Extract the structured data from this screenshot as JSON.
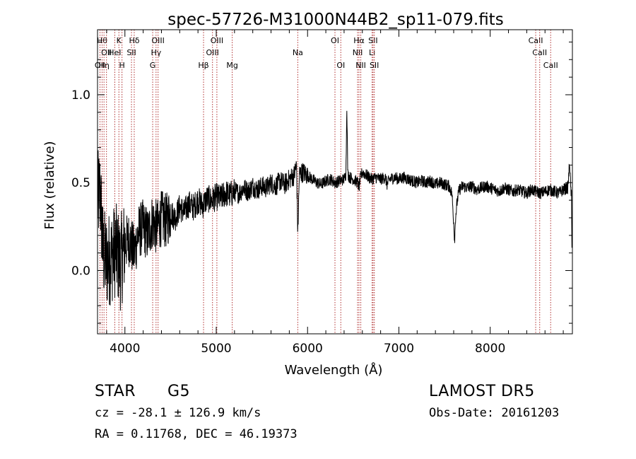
{
  "chart_data": {
    "type": "line",
    "title": "spec-57726-M31000N44B2_sp11-079.fits",
    "xlabel": "Wavelength (Å)",
    "ylabel": "Flux (relative)",
    "xlim": [
      3700,
      8900
    ],
    "ylim": [
      -0.36,
      1.37
    ],
    "xticks": [
      {
        "value": 4000,
        "label": "4000"
      },
      {
        "value": 5000,
        "label": "5000"
      },
      {
        "value": 6000,
        "label": "6000"
      },
      {
        "value": 7000,
        "label": "7000"
      },
      {
        "value": 8000,
        "label": "8000"
      }
    ],
    "yticks": [
      {
        "value": 0.0,
        "label": "0.0"
      },
      {
        "value": 0.5,
        "label": "0.5"
      },
      {
        "value": 1.0,
        "label": "1.0"
      }
    ],
    "line_color": "#000000",
    "marker_color": "#b03030",
    "lines": [
      {
        "wavelength": 3727,
        "label": "OII",
        "row": 2
      },
      {
        "wavelength": 3750,
        "label": "Hθ",
        "row": 0
      },
      {
        "wavelength": 3771,
        "label": "Hη",
        "row": 2
      },
      {
        "wavelength": 3798,
        "label": "OII",
        "row": 1
      },
      {
        "wavelength": 3889,
        "label": "HeI",
        "row": 1
      },
      {
        "wavelength": 3934,
        "label": "K",
        "row": 0
      },
      {
        "wavelength": 3968,
        "label": "H",
        "row": 2
      },
      {
        "wavelength": 4072,
        "label": "SII",
        "row": 1
      },
      {
        "wavelength": 4102,
        "label": "Hδ",
        "row": 0
      },
      {
        "wavelength": 4304,
        "label": "G",
        "row": 2
      },
      {
        "wavelength": 4341,
        "label": "Hγ",
        "row": 1
      },
      {
        "wavelength": 4363,
        "label": "OIII",
        "row": 0
      },
      {
        "wavelength": 4861,
        "label": "Hβ",
        "row": 2
      },
      {
        "wavelength": 4959,
        "label": "OIII",
        "row": 1
      },
      {
        "wavelength": 5007,
        "label": "OIII",
        "row": 0
      },
      {
        "wavelength": 5175,
        "label": "Mg",
        "row": 2
      },
      {
        "wavelength": 5893,
        "label": "Na",
        "row": 1
      },
      {
        "wavelength": 6300,
        "label": "OI",
        "row": 0
      },
      {
        "wavelength": 6364,
        "label": "OI",
        "row": 2
      },
      {
        "wavelength": 6548,
        "label": "NII",
        "row": 1
      },
      {
        "wavelength": 6563,
        "label": "Hα",
        "row": 0
      },
      {
        "wavelength": 6583,
        "label": "NII",
        "row": 2
      },
      {
        "wavelength": 6707,
        "label": "Li",
        "row": 1
      },
      {
        "wavelength": 6717,
        "label": "SII",
        "row": 0
      },
      {
        "wavelength": 6731,
        "label": "SII",
        "row": 2
      },
      {
        "wavelength": 8498,
        "label": "CaII",
        "row": 0
      },
      {
        "wavelength": 8542,
        "label": "CaII",
        "row": 1
      },
      {
        "wavelength": 8662,
        "label": "CaII",
        "row": 2
      }
    ],
    "spectrum": {
      "x": [
        3700,
        3730,
        3760,
        3800,
        3850,
        3900,
        3950,
        4000,
        4050,
        4100,
        4150,
        4200,
        4250,
        4300,
        4350,
        4400,
        4450,
        4500,
        4550,
        4600,
        4650,
        4700,
        4750,
        4800,
        4850,
        4900,
        4950,
        5000,
        5050,
        5100,
        5150,
        5200,
        5250,
        5300,
        5350,
        5400,
        5450,
        5500,
        5550,
        5600,
        5650,
        5700,
        5750,
        5800,
        5850,
        5880,
        5893,
        5910,
        5950,
        6000,
        6050,
        6100,
        6150,
        6200,
        6250,
        6300,
        6350,
        6400,
        6420,
        6430,
        6440,
        6460,
        6500,
        6550,
        6563,
        6580,
        6600,
        6650,
        6700,
        6750,
        6800,
        6850,
        6870,
        6900,
        6950,
        7000,
        7050,
        7100,
        7150,
        7200,
        7250,
        7300,
        7350,
        7400,
        7450,
        7500,
        7550,
        7580,
        7600,
        7610,
        7620,
        7640,
        7660,
        7700,
        7750,
        7800,
        7850,
        7900,
        7950,
        8000,
        8050,
        8100,
        8150,
        8200,
        8250,
        8300,
        8350,
        8400,
        8450,
        8500,
        8550,
        8600,
        8650,
        8700,
        8750,
        8800,
        8850,
        8870,
        8880,
        8890,
        8895
      ],
      "y": [
        0.4,
        0.45,
        0.1,
        0.05,
        0.08,
        0.12,
        0.04,
        0.15,
        0.18,
        0.1,
        0.22,
        0.25,
        0.2,
        0.28,
        0.24,
        0.3,
        0.28,
        0.33,
        0.3,
        0.36,
        0.33,
        0.38,
        0.36,
        0.4,
        0.37,
        0.41,
        0.4,
        0.42,
        0.41,
        0.44,
        0.43,
        0.45,
        0.44,
        0.47,
        0.45,
        0.48,
        0.46,
        0.48,
        0.47,
        0.5,
        0.48,
        0.51,
        0.49,
        0.52,
        0.54,
        0.6,
        0.2,
        0.55,
        0.56,
        0.54,
        0.52,
        0.5,
        0.49,
        0.51,
        0.52,
        0.5,
        0.51,
        0.52,
        0.55,
        0.95,
        0.55,
        0.53,
        0.52,
        0.5,
        0.47,
        0.53,
        0.56,
        0.54,
        0.52,
        0.53,
        0.52,
        0.53,
        0.49,
        0.52,
        0.53,
        0.52,
        0.53,
        0.52,
        0.51,
        0.5,
        0.51,
        0.5,
        0.51,
        0.49,
        0.5,
        0.49,
        0.48,
        0.44,
        0.28,
        0.17,
        0.3,
        0.4,
        0.46,
        0.48,
        0.47,
        0.48,
        0.46,
        0.47,
        0.48,
        0.47,
        0.46,
        0.45,
        0.47,
        0.46,
        0.45,
        0.46,
        0.45,
        0.44,
        0.46,
        0.45,
        0.44,
        0.45,
        0.46,
        0.45,
        0.44,
        0.46,
        0.47,
        0.62,
        0.48,
        0.42,
        0.05
      ]
    }
  },
  "info": {
    "object_class": "STAR",
    "subclass": "G5",
    "survey": "LAMOST DR5",
    "redshift_text": "cz = -28.1 ± 126.9 km/s",
    "obs_date": "Obs-Date: 20161203",
    "coords": "RA =   0.11768, DEC =  46.19373"
  }
}
